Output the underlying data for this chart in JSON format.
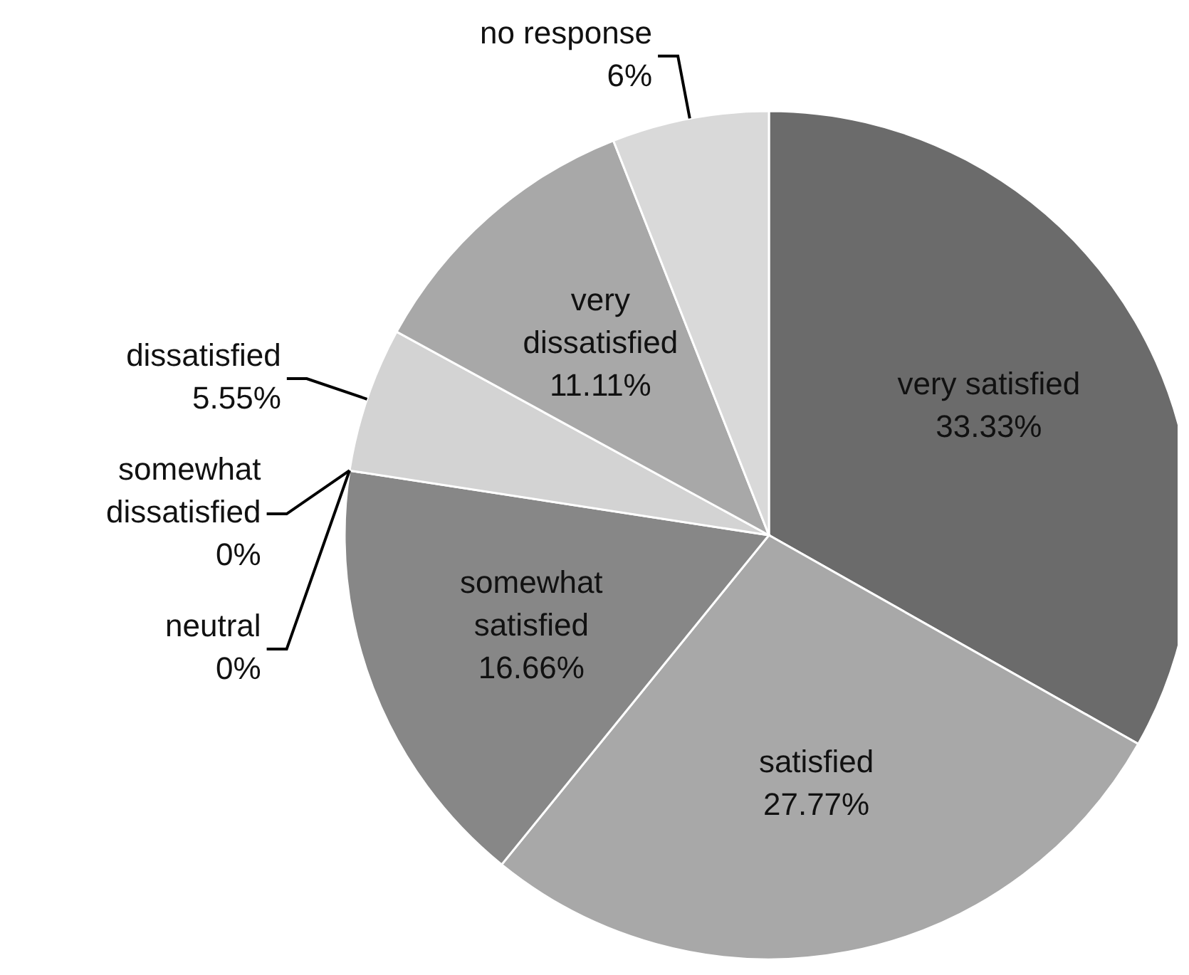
{
  "chart_data": {
    "type": "pie",
    "categories": [
      "very satisfied",
      "satisfied",
      "somewhat satisfied",
      "neutral",
      "somewhat dissatisfied",
      "dissatisfied",
      "very dissatisfied",
      "no response"
    ],
    "values": [
      33.33,
      27.77,
      16.66,
      0,
      0,
      5.55,
      11.11,
      6
    ],
    "value_labels": [
      "33.33%",
      "27.77%",
      "16.66%",
      "0%",
      "0%",
      "5.55%",
      "11.11%",
      "6%"
    ],
    "colors": [
      "#6b6b6b",
      "#a8a8a8",
      "#878787",
      "#999999",
      "#c0c0c0",
      "#d3d3d3",
      "#a8a8a8",
      "#d9d9d9"
    ]
  }
}
